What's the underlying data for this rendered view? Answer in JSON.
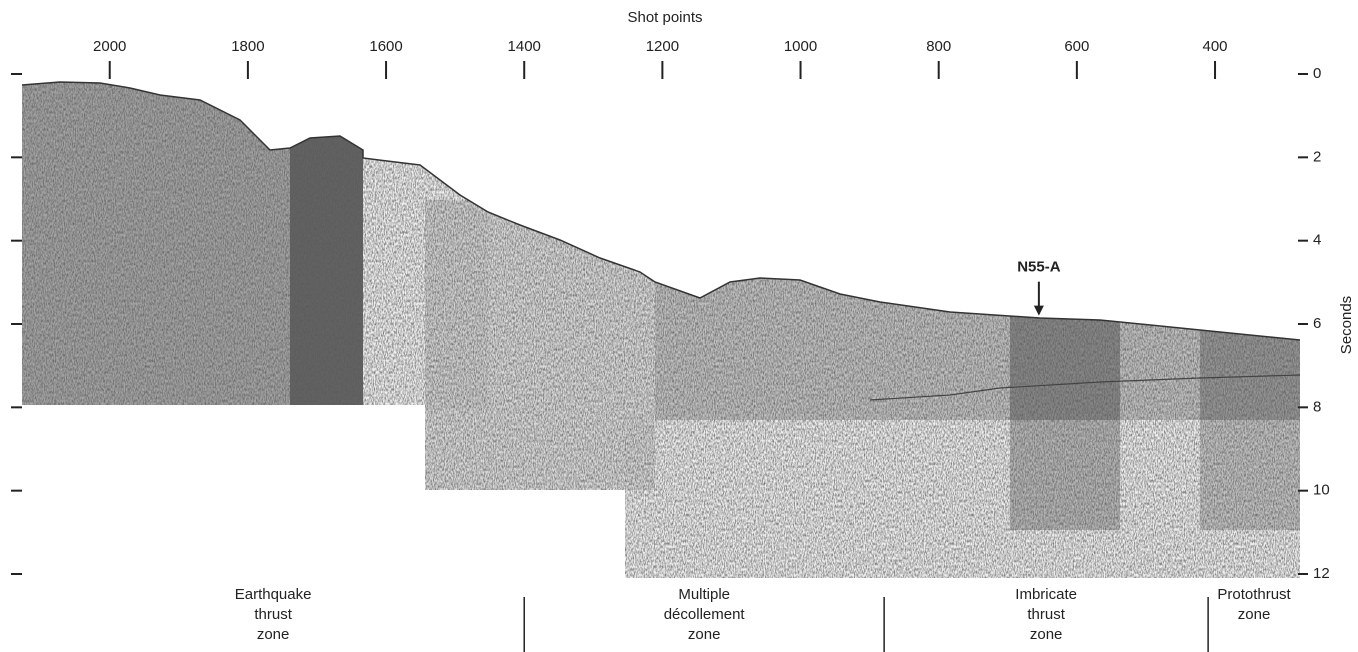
{
  "top_axis": {
    "title": "Shot points",
    "ticks": [
      2000,
      1800,
      1600,
      1400,
      1200,
      1000,
      800,
      600,
      400
    ],
    "range": [
      2127,
      277
    ]
  },
  "right_axis": {
    "title": "Seconds",
    "ticks": [
      0,
      2,
      4,
      6,
      8,
      10,
      12
    ],
    "range": [
      0,
      12
    ]
  },
  "site": {
    "label": "N55-A",
    "shot_point": 655,
    "seconds": 5.8
  },
  "zone_boundaries": [
    1400,
    879,
    410
  ],
  "zones": [
    {
      "lines": [
        "Earthquake",
        "thrust",
        "zone"
      ]
    },
    {
      "lines": [
        "Multiple",
        "décollement",
        "zone"
      ]
    },
    {
      "lines": [
        "Imbricate",
        "thrust",
        "zone"
      ]
    },
    {
      "lines": [
        "Protothrust",
        "zone"
      ]
    }
  ]
}
